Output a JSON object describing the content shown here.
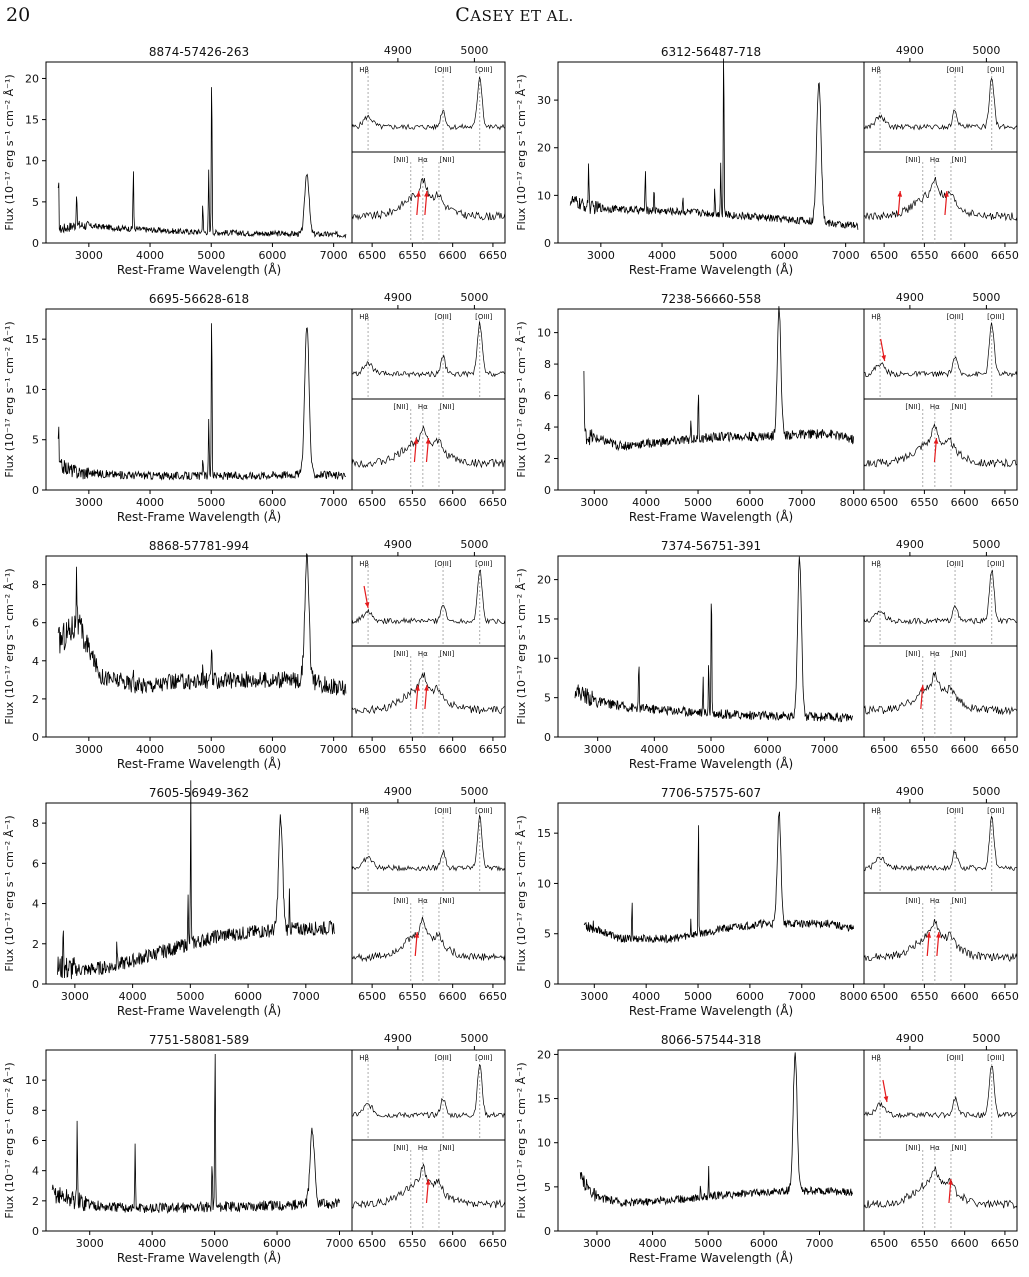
{
  "header": {
    "page_number": "20",
    "running_head_first": "C",
    "running_head_rest": "ASEY ET AL."
  },
  "shared": {
    "ylabel": "Flux (10⁻¹⁷ erg s⁻¹ cm⁻² Å⁻¹)",
    "xlabel": "Rest-Frame Wavelength (Å)",
    "inset_top_ticks": [
      "4900",
      "5000"
    ],
    "inset_bottom_ticks": [
      "6500",
      "6550",
      "6600",
      "6650"
    ],
    "line_labels_top": [
      "Hβ",
      "[OIII]",
      "[OIII]"
    ],
    "line_labels_bottom": [
      "[NII]",
      "Hα",
      "[NII]"
    ]
  },
  "chart_data": [
    {
      "type": "line",
      "title": "8874-57426-263",
      "xlim": [
        2300,
        7300
      ],
      "ylim": [
        0,
        22
      ],
      "xticks": [
        3000,
        4000,
        5000,
        6000,
        7000
      ],
      "yticks": [
        0,
        5,
        10,
        15,
        20
      ],
      "base": [
        [
          2500,
          1.6
        ],
        [
          2800,
          2.2
        ],
        [
          3500,
          1.8
        ],
        [
          4500,
          1.4
        ],
        [
          5500,
          1.2
        ],
        [
          6500,
          1.1
        ],
        [
          7200,
          1.0
        ]
      ],
      "noise": 0.35,
      "lines": [
        [
          2505,
          6.5
        ],
        [
          2800,
          4.2
        ],
        [
          3727,
          7.5
        ],
        [
          4861,
          3.5
        ],
        [
          4959,
          7.5
        ],
        [
          5007,
          21
        ],
        [
          6563,
          7.5
        ]
      ],
      "inset_top_arrows": [],
      "inset_bottom_arrows": [
        6558,
        6568
      ]
    },
    {
      "type": "line",
      "title": "6312-56487-718",
      "xlim": [
        2300,
        7300
      ],
      "ylim": [
        0,
        38
      ],
      "xticks": [
        3000,
        4000,
        5000,
        6000,
        7000
      ],
      "yticks": [
        0,
        10,
        20,
        30
      ],
      "base": [
        [
          2500,
          9
        ],
        [
          2800,
          7.5
        ],
        [
          3500,
          7
        ],
        [
          4500,
          6.5
        ],
        [
          5500,
          5.5
        ],
        [
          6500,
          4.5
        ],
        [
          7200,
          3.5
        ]
      ],
      "noise": 0.8,
      "lines": [
        [
          2800,
          10
        ],
        [
          3727,
          8
        ],
        [
          3869,
          5
        ],
        [
          4340,
          3
        ],
        [
          4861,
          6
        ],
        [
          4959,
          11
        ],
        [
          5007,
          38
        ],
        [
          6563,
          30
        ]
      ],
      "inset_top_arrows": [],
      "inset_bottom_arrows": [
        6520,
        6578
      ]
    },
    {
      "type": "line",
      "title": "6695-56628-618",
      "xlim": [
        2300,
        7300
      ],
      "ylim": [
        0,
        18
      ],
      "xticks": [
        3000,
        4000,
        5000,
        6000,
        7000
      ],
      "yticks": [
        0,
        5,
        10,
        15
      ],
      "base": [
        [
          2500,
          2.5
        ],
        [
          2800,
          1.8
        ],
        [
          3500,
          1.5
        ],
        [
          4500,
          1.4
        ],
        [
          5500,
          1.4
        ],
        [
          6500,
          1.6
        ],
        [
          7200,
          1.4
        ]
      ],
      "noise": 0.4,
      "lines": [
        [
          2505,
          4
        ],
        [
          4861,
          2
        ],
        [
          4959,
          6
        ],
        [
          5007,
          18
        ],
        [
          6563,
          15
        ]
      ],
      "inset_top_arrows": [],
      "inset_bottom_arrows": [
        6555,
        6570
      ]
    },
    {
      "type": "line",
      "title": "7238-56660-558",
      "xlim": [
        2300,
        8200
      ],
      "ylim": [
        0,
        11.5
      ],
      "xticks": [
        3000,
        4000,
        5000,
        6000,
        7000,
        8000
      ],
      "yticks": [
        0,
        2,
        4,
        6,
        8,
        10
      ],
      "base": [
        [
          2800,
          3.5
        ],
        [
          3500,
          2.8
        ],
        [
          4500,
          3.1
        ],
        [
          5500,
          3.4
        ],
        [
          6200,
          3.4
        ],
        [
          7500,
          3.6
        ],
        [
          8000,
          3.2
        ]
      ],
      "noise": 0.3,
      "lines": [
        [
          2800,
          4
        ],
        [
          4861,
          1.5
        ],
        [
          5007,
          3.5
        ],
        [
          6563,
          8
        ]
      ],
      "inset_top_arrows": [
        4867
      ],
      "inset_bottom_arrows": [
        6565
      ]
    },
    {
      "type": "line",
      "title": "8868-57781-994",
      "xlim": [
        2300,
        7300
      ],
      "ylim": [
        0,
        9.5
      ],
      "xticks": [
        3000,
        4000,
        5000,
        6000,
        7000
      ],
      "yticks": [
        0,
        2,
        4,
        6,
        8
      ],
      "base": [
        [
          2500,
          5
        ],
        [
          2800,
          6
        ],
        [
          3200,
          3.2
        ],
        [
          3800,
          2.7
        ],
        [
          4500,
          2.9
        ],
        [
          5500,
          3.0
        ],
        [
          6500,
          3.0
        ],
        [
          7200,
          2.5
        ]
      ],
      "noise": 0.45,
      "lines": [
        [
          2800,
          3.4
        ],
        [
          3727,
          1
        ],
        [
          4861,
          0.6
        ],
        [
          5007,
          2
        ],
        [
          6563,
          6.3
        ]
      ],
      "inset_top_arrows": [
        4861
      ],
      "inset_bottom_arrows": [
        6557,
        6568
      ]
    },
    {
      "type": "line",
      "title": "7374-56751-391",
      "xlim": [
        2300,
        7700
      ],
      "ylim": [
        0,
        23
      ],
      "xticks": [
        3000,
        4000,
        5000,
        6000,
        7000
      ],
      "yticks": [
        0,
        5,
        10,
        15,
        20
      ],
      "base": [
        [
          2600,
          6
        ],
        [
          3000,
          4.5
        ],
        [
          3500,
          3.8
        ],
        [
          4500,
          3.3
        ],
        [
          5500,
          2.8
        ],
        [
          6500,
          2.6
        ],
        [
          7500,
          2.5
        ]
      ],
      "noise": 0.6,
      "lines": [
        [
          3727,
          6
        ],
        [
          4861,
          4
        ],
        [
          4959,
          7
        ],
        [
          5007,
          18
        ],
        [
          6563,
          20
        ]
      ],
      "inset_top_arrows": [],
      "inset_bottom_arrows": [
        6548
      ]
    },
    {
      "type": "line",
      "title": "7605-56949-362",
      "xlim": [
        2500,
        7800
      ],
      "ylim": [
        0,
        9
      ],
      "xticks": [
        3000,
        4000,
        5000,
        6000,
        7000
      ],
      "yticks": [
        0,
        2,
        4,
        6,
        8
      ],
      "base": [
        [
          2700,
          0.8
        ],
        [
          3200,
          0.7
        ],
        [
          3700,
          0.9
        ],
        [
          4500,
          1.6
        ],
        [
          5500,
          2.4
        ],
        [
          6500,
          2.7
        ],
        [
          7500,
          2.8
        ]
      ],
      "noise": 0.35,
      "lines": [
        [
          2800,
          2.5
        ],
        [
          3727,
          1.5
        ],
        [
          4959,
          2.5
        ],
        [
          5007,
          8
        ],
        [
          6563,
          5.5
        ],
        [
          6717,
          2
        ]
      ],
      "inset_top_arrows": [],
      "inset_bottom_arrows": [
        6556
      ]
    },
    {
      "type": "line",
      "title": "7706-57575-607",
      "xlim": [
        2300,
        8200
      ],
      "ylim": [
        0,
        18
      ],
      "xticks": [
        3000,
        4000,
        5000,
        6000,
        7000,
        8000
      ],
      "yticks": [
        0,
        5,
        10,
        15
      ],
      "base": [
        [
          2800,
          6
        ],
        [
          3500,
          4.5
        ],
        [
          4500,
          4.5
        ],
        [
          5500,
          5.5
        ],
        [
          6200,
          6
        ],
        [
          7500,
          6
        ],
        [
          8000,
          5.5
        ]
      ],
      "noise": 0.4,
      "lines": [
        [
          3727,
          4
        ],
        [
          4861,
          1.5
        ],
        [
          5007,
          12
        ],
        [
          6563,
          11
        ]
      ],
      "inset_top_arrows": [],
      "inset_bottom_arrows": [
        6556,
        6568
      ]
    },
    {
      "type": "line",
      "title": "7751-58081-589",
      "xlim": [
        2300,
        7200
      ],
      "ylim": [
        0,
        12
      ],
      "xticks": [
        3000,
        4000,
        5000,
        6000,
        7000
      ],
      "yticks": [
        0,
        2,
        4,
        6,
        8,
        10
      ],
      "base": [
        [
          2400,
          2.5
        ],
        [
          2800,
          2
        ],
        [
          3200,
          1.6
        ],
        [
          4000,
          1.5
        ],
        [
          5000,
          1.6
        ],
        [
          6000,
          1.7
        ],
        [
          7000,
          1.8
        ]
      ],
      "noise": 0.35,
      "lines": [
        [
          2800,
          5
        ],
        [
          3727,
          4
        ],
        [
          4959,
          3
        ],
        [
          5007,
          11.5
        ],
        [
          6563,
          5
        ]
      ],
      "inset_top_arrows": [],
      "inset_bottom_arrows": [
        6570
      ]
    },
    {
      "type": "line",
      "title": "8066-57544-318",
      "xlim": [
        2300,
        7800
      ],
      "ylim": [
        0,
        20.5
      ],
      "xticks": [
        3000,
        4000,
        5000,
        6000,
        7000
      ],
      "yticks": [
        0,
        5,
        10,
        15,
        20
      ],
      "base": [
        [
          2700,
          6
        ],
        [
          3000,
          3.8
        ],
        [
          3500,
          3.2
        ],
        [
          4500,
          3.6
        ],
        [
          5500,
          4.2
        ],
        [
          6500,
          4.6
        ],
        [
          7600,
          4.4
        ]
      ],
      "noise": 0.45,
      "lines": [
        [
          4861,
          1.5
        ],
        [
          5007,
          3.5
        ],
        [
          6563,
          15.5
        ]
      ],
      "inset_top_arrows": [
        4870
      ],
      "inset_bottom_arrows": [
        6583
      ]
    }
  ]
}
